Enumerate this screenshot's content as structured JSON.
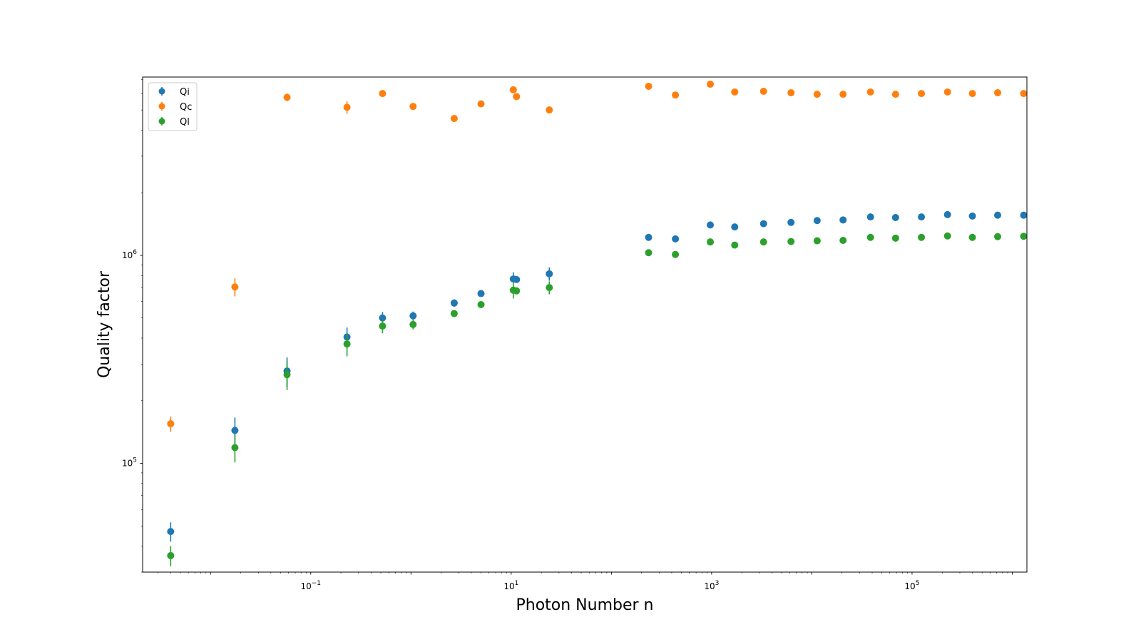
{
  "chart_data": {
    "type": "scatter",
    "title": "",
    "xlabel": "Photon Number n",
    "ylabel": "Quality factor",
    "xscale": "log",
    "yscale": "log",
    "xlim": [
      0.0021,
      1400000
    ],
    "ylim": [
      30000,
      7200000
    ],
    "legend_position": "top-left",
    "grid": false,
    "x_ticks": [
      {
        "base": "10",
        "exp": "−1",
        "value": 0.1
      },
      {
        "base": "10",
        "exp": "1",
        "value": 10
      },
      {
        "base": "10",
        "exp": "3",
        "value": 1000
      },
      {
        "base": "10",
        "exp": "5",
        "value": 100000
      }
    ],
    "y_ticks": [
      {
        "base": "10",
        "exp": "5",
        "value": 100000
      },
      {
        "base": "10",
        "exp": "6",
        "value": 1000000
      }
    ],
    "series": [
      {
        "name": "Qi",
        "color": "#1f77b4",
        "points": [
          {
            "x": 0.004,
            "y": 47000,
            "err": 5000
          },
          {
            "x": 0.0175,
            "y": 144000,
            "err": 22000
          },
          {
            "x": 0.058,
            "y": 278000,
            "err": 45000
          },
          {
            "x": 0.23,
            "y": 405000,
            "err": 45000
          },
          {
            "x": 0.52,
            "y": 500000,
            "err": 35000
          },
          {
            "x": 1.05,
            "y": 512000,
            "err": 25000
          },
          {
            "x": 2.7,
            "y": 590000,
            "err": 25000
          },
          {
            "x": 5.0,
            "y": 655000,
            "err": 15000
          },
          {
            "x": 10.5,
            "y": 770000,
            "err": 60000
          },
          {
            "x": 11.3,
            "y": 765000,
            "err": 20000
          },
          {
            "x": 24.0,
            "y": 815000,
            "err": 60000
          },
          {
            "x": 235,
            "y": 1220000,
            "err": 40000
          },
          {
            "x": 435,
            "y": 1200000,
            "err": 30000
          },
          {
            "x": 970,
            "y": 1400000,
            "err": 30000
          },
          {
            "x": 1700,
            "y": 1370000,
            "err": 30000
          },
          {
            "x": 3300,
            "y": 1420000,
            "err": 25000
          },
          {
            "x": 6200,
            "y": 1440000,
            "err": 20000
          },
          {
            "x": 11300,
            "y": 1470000,
            "err": 20000
          },
          {
            "x": 20500,
            "y": 1480000,
            "err": 20000
          },
          {
            "x": 38500,
            "y": 1530000,
            "err": 20000
          },
          {
            "x": 68500,
            "y": 1520000,
            "err": 20000
          },
          {
            "x": 124000,
            "y": 1530000,
            "err": 20000
          },
          {
            "x": 226000,
            "y": 1570000,
            "err": 20000
          },
          {
            "x": 400000,
            "y": 1545000,
            "err": 20000
          },
          {
            "x": 715000,
            "y": 1560000,
            "err": 20000
          },
          {
            "x": 1300000,
            "y": 1560000,
            "err": 20000
          }
        ]
      },
      {
        "name": "Qc",
        "color": "#ff7f0e",
        "points": [
          {
            "x": 0.004,
            "y": 155000,
            "err": 13000
          },
          {
            "x": 0.0175,
            "y": 705000,
            "err": 70000
          },
          {
            "x": 0.058,
            "y": 5750000,
            "err": 250000
          },
          {
            "x": 0.23,
            "y": 5150000,
            "err": 350000
          },
          {
            "x": 0.52,
            "y": 6000000,
            "err": 150000
          },
          {
            "x": 1.05,
            "y": 5200000,
            "err": 100000
          },
          {
            "x": 2.7,
            "y": 4550000,
            "err": 80000
          },
          {
            "x": 5.0,
            "y": 5350000,
            "err": 100000
          },
          {
            "x": 10.5,
            "y": 6250000,
            "err": 180000
          },
          {
            "x": 11.3,
            "y": 5800000,
            "err": 100000
          },
          {
            "x": 24.0,
            "y": 5000000,
            "err": 80000
          },
          {
            "x": 235,
            "y": 6500000,
            "err": 100000
          },
          {
            "x": 435,
            "y": 5900000,
            "err": 80000
          },
          {
            "x": 970,
            "y": 6650000,
            "err": 100000
          },
          {
            "x": 1700,
            "y": 6100000,
            "err": 80000
          },
          {
            "x": 3300,
            "y": 6150000,
            "err": 80000
          },
          {
            "x": 6200,
            "y": 6050000,
            "err": 80000
          },
          {
            "x": 11300,
            "y": 5950000,
            "err": 80000
          },
          {
            "x": 20500,
            "y": 5950000,
            "err": 80000
          },
          {
            "x": 38500,
            "y": 6100000,
            "err": 80000
          },
          {
            "x": 68500,
            "y": 5950000,
            "err": 80000
          },
          {
            "x": 124000,
            "y": 6000000,
            "err": 80000
          },
          {
            "x": 226000,
            "y": 6100000,
            "err": 80000
          },
          {
            "x": 400000,
            "y": 6000000,
            "err": 80000
          },
          {
            "x": 715000,
            "y": 6050000,
            "err": 80000
          },
          {
            "x": 1300000,
            "y": 6000000,
            "err": 80000
          }
        ]
      },
      {
        "name": "Ql",
        "color": "#2ca02c",
        "points": [
          {
            "x": 0.004,
            "y": 36000,
            "err": 4000
          },
          {
            "x": 0.0175,
            "y": 119000,
            "err": 18000
          },
          {
            "x": 0.058,
            "y": 267000,
            "err": 42000
          },
          {
            "x": 0.23,
            "y": 375000,
            "err": 48000
          },
          {
            "x": 0.52,
            "y": 457000,
            "err": 35000
          },
          {
            "x": 1.05,
            "y": 465000,
            "err": 25000
          },
          {
            "x": 2.7,
            "y": 525000,
            "err": 15000
          },
          {
            "x": 5.0,
            "y": 580000,
            "err": 15000
          },
          {
            "x": 10.5,
            "y": 680000,
            "err": 60000
          },
          {
            "x": 11.3,
            "y": 675000,
            "err": 20000
          },
          {
            "x": 24.0,
            "y": 700000,
            "err": 50000
          },
          {
            "x": 235,
            "y": 1030000,
            "err": 20000
          },
          {
            "x": 435,
            "y": 1010000,
            "err": 20000
          },
          {
            "x": 970,
            "y": 1160000,
            "err": 20000
          },
          {
            "x": 1700,
            "y": 1120000,
            "err": 20000
          },
          {
            "x": 3300,
            "y": 1160000,
            "err": 20000
          },
          {
            "x": 6200,
            "y": 1165000,
            "err": 20000
          },
          {
            "x": 11300,
            "y": 1175000,
            "err": 20000
          },
          {
            "x": 20500,
            "y": 1180000,
            "err": 20000
          },
          {
            "x": 38500,
            "y": 1220000,
            "err": 20000
          },
          {
            "x": 68500,
            "y": 1210000,
            "err": 20000
          },
          {
            "x": 124000,
            "y": 1220000,
            "err": 20000
          },
          {
            "x": 226000,
            "y": 1240000,
            "err": 20000
          },
          {
            "x": 400000,
            "y": 1220000,
            "err": 20000
          },
          {
            "x": 715000,
            "y": 1230000,
            "err": 20000
          },
          {
            "x": 1300000,
            "y": 1235000,
            "err": 20000
          }
        ]
      }
    ]
  }
}
